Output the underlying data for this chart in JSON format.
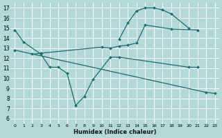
{
  "xlabel": "Humidex (Indice chaleur)",
  "bg_color": "#b2d8d8",
  "grid_color": "#ffffff",
  "line_color": "#1a6b6b",
  "xlim": [
    -0.5,
    23.5
  ],
  "ylim": [
    5.5,
    17.5
  ],
  "xticks": [
    0,
    1,
    2,
    3,
    4,
    5,
    6,
    7,
    8,
    9,
    10,
    11,
    12,
    13,
    14,
    15,
    16,
    17,
    18,
    19,
    20,
    21,
    22,
    23
  ],
  "yticks": [
    6,
    7,
    8,
    9,
    10,
    11,
    12,
    13,
    14,
    15,
    16,
    17
  ],
  "curves": [
    {
      "x": [
        12,
        13,
        14,
        15,
        16,
        17,
        18,
        20
      ],
      "y": [
        13.9,
        15.5,
        16.7,
        17.0,
        17.0,
        16.8,
        16.4,
        15.0
      ]
    },
    {
      "x": [
        0,
        1,
        3,
        4,
        5,
        6,
        7,
        8,
        9,
        11,
        12,
        20,
        21
      ],
      "y": [
        14.8,
        13.6,
        12.4,
        11.1,
        11.1,
        10.5,
        7.3,
        8.2,
        9.9,
        12.1,
        12.1,
        11.1,
        11.1
      ]
    },
    {
      "x": [
        2,
        3,
        10,
        11,
        12,
        13,
        14,
        15,
        18,
        21
      ],
      "y": [
        12.4,
        12.5,
        13.1,
        13.0,
        13.2,
        13.3,
        13.5,
        15.3,
        14.9,
        14.8
      ]
    },
    {
      "x": [
        0,
        22,
        23
      ],
      "y": [
        12.8,
        8.6,
        8.5
      ]
    }
  ]
}
